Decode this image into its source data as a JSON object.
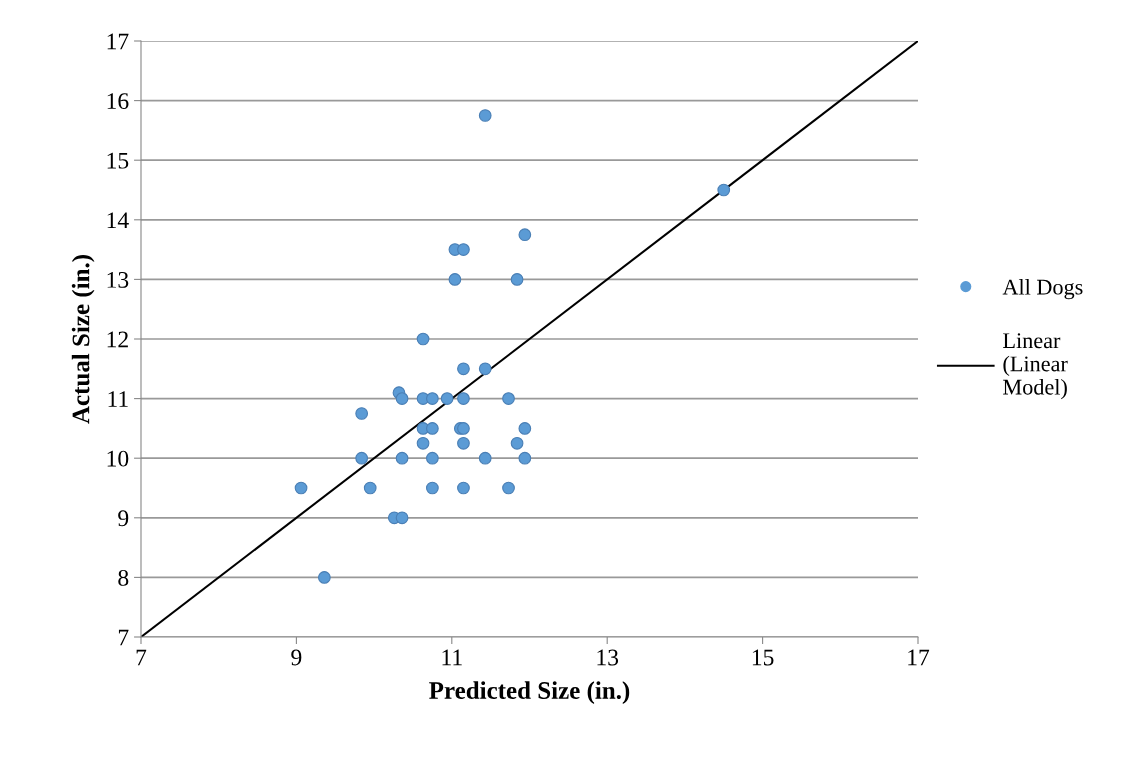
{
  "chart_data": {
    "type": "scatter",
    "xlabel": "Predicted Size (in.)",
    "ylabel": "Actual Size (in.)",
    "xlim": [
      7,
      17
    ],
    "ylim": [
      7,
      17
    ],
    "xticks": [
      7,
      9,
      11,
      13,
      15,
      17
    ],
    "yticks": [
      7,
      8,
      9,
      10,
      11,
      12,
      13,
      14,
      15,
      16,
      17
    ],
    "grid": "y",
    "legend": "right",
    "series": [
      {
        "name": "All Dogs",
        "marker": "circle",
        "color": "#5b9bd5",
        "x": [
          11.43,
          14.5,
          11.04,
          11.15,
          11.94,
          11.04,
          11.84,
          10.63,
          11.15,
          11.43,
          10.32,
          10.36,
          10.63,
          10.75,
          10.94,
          11.15,
          11.73,
          9.84,
          10.63,
          10.75,
          11.11,
          11.15,
          11.94,
          10.63,
          11.15,
          11.84,
          9.84,
          10.36,
          10.75,
          11.43,
          11.94,
          9.06,
          9.95,
          10.75,
          11.15,
          11.73,
          10.26,
          10.36,
          9.36
        ],
        "values": [
          15.75,
          14.5,
          13.5,
          13.5,
          13.75,
          13.0,
          13.0,
          12.0,
          11.5,
          11.5,
          11.1,
          11.0,
          11.0,
          11.0,
          11.0,
          11.0,
          11.0,
          10.75,
          10.5,
          10.5,
          10.5,
          10.5,
          10.5,
          10.25,
          10.25,
          10.25,
          10.0,
          10.0,
          10.0,
          10.0,
          10.0,
          9.5,
          9.5,
          9.5,
          9.5,
          9.5,
          9.0,
          9.0,
          8.0
        ]
      },
      {
        "name": "Linear\n(Linear\nModel)",
        "type": "line",
        "color": "#000000",
        "line_style": "solid",
        "x": [
          7,
          17
        ],
        "values": [
          7,
          17
        ]
      }
    ]
  }
}
